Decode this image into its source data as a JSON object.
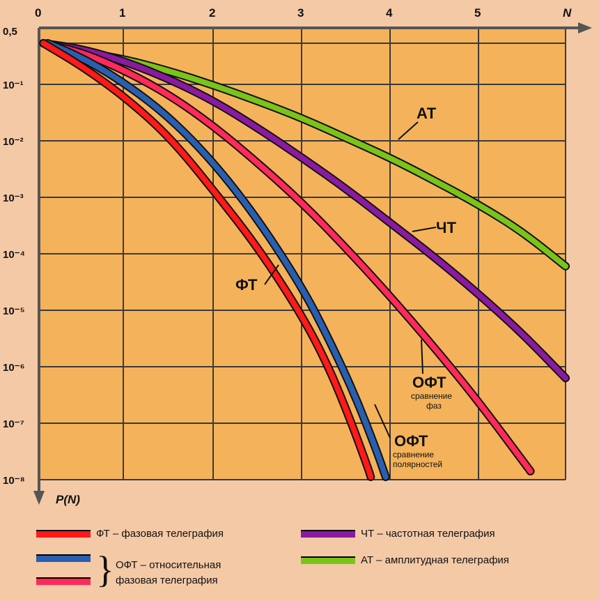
{
  "colors": {
    "background": "#f4c9a6",
    "plot_area": "#f4b35a",
    "grid": "#3a3a3a",
    "FT": "#ff1a1a",
    "OFT_phase": "#ff2a5a",
    "OFT_polarity": "#2a5fb0",
    "CT": "#8a1aa0",
    "AT": "#7ac41a"
  },
  "chart_data": {
    "type": "line",
    "xlabel": "N",
    "ylabel": "P(N)",
    "xlim": [
      0,
      6
    ],
    "x_ticks": [
      "0",
      "1",
      "2",
      "3",
      "4",
      "5",
      "N"
    ],
    "y_scale": "log",
    "ylim_exponent": [
      -8,
      0
    ],
    "y_ticks": [
      "0,5",
      "10⁻¹",
      "10⁻²",
      "10⁻³",
      "10⁻⁴",
      "10⁻⁵",
      "10⁻⁶",
      "10⁻⁷",
      "10⁻⁸"
    ],
    "grid": true,
    "series": [
      {
        "key": "AT",
        "name": "АТ",
        "x": [
          0.05,
          0.5,
          1.0,
          1.5,
          2.0,
          2.5,
          3.0,
          3.5,
          4.0,
          4.5,
          5.0,
          5.5,
          6.0
        ],
        "log10_y": [
          -0.3,
          -0.45,
          -0.58,
          -0.78,
          -1.02,
          -1.3,
          -1.6,
          -1.95,
          -2.3,
          -2.7,
          -3.12,
          -3.6,
          -4.22
        ]
      },
      {
        "key": "CT",
        "name": "ЧТ",
        "x": [
          0.05,
          0.5,
          1.0,
          1.5,
          2.0,
          2.5,
          3.0,
          3.5,
          4.0,
          4.5,
          5.0,
          5.5,
          6.0
        ],
        "log10_y": [
          -0.3,
          -0.4,
          -0.62,
          -0.92,
          -1.3,
          -1.78,
          -2.3,
          -2.85,
          -3.45,
          -4.05,
          -4.7,
          -5.4,
          -6.2
        ]
      },
      {
        "key": "OFT_phase",
        "name": "ОФТ сравнение фаз",
        "x": [
          0.05,
          0.5,
          1.0,
          1.5,
          2.0,
          2.5,
          3.0,
          3.5,
          4.0,
          4.5,
          5.0,
          5.6
        ],
        "log10_y": [
          -0.3,
          -0.46,
          -0.78,
          -1.2,
          -1.75,
          -2.4,
          -3.1,
          -3.9,
          -4.75,
          -5.65,
          -6.6,
          -7.85
        ]
      },
      {
        "key": "OFT_polarity",
        "name": "ОФТ сравнение полярностей",
        "x": [
          0.1,
          0.5,
          1.0,
          1.5,
          2.0,
          2.5,
          3.0,
          3.3,
          3.6,
          3.85,
          3.95
        ],
        "log10_y": [
          -0.3,
          -0.55,
          -1.0,
          -1.6,
          -2.4,
          -3.4,
          -4.6,
          -5.5,
          -6.5,
          -7.5,
          -7.95
        ]
      },
      {
        "key": "FT",
        "name": "ФТ",
        "x": [
          0.05,
          0.5,
          1.0,
          1.5,
          2.0,
          2.5,
          3.0,
          3.3,
          3.55,
          3.75,
          3.78
        ],
        "log10_y": [
          -0.3,
          -0.7,
          -1.25,
          -1.95,
          -2.9,
          -3.9,
          -5.1,
          -6.0,
          -6.95,
          -7.8,
          -7.95
        ]
      }
    ],
    "annotations": [
      {
        "key": "AT",
        "text": "АТ"
      },
      {
        "key": "CT",
        "text": "ЧТ"
      },
      {
        "key": "FT",
        "text": "ФТ"
      },
      {
        "key": "OFT_phase",
        "text": "ОФТ",
        "sub": [
          "сравнение",
          "фаз"
        ]
      },
      {
        "key": "OFT_polarity",
        "text": "ОФТ",
        "sub": [
          "сравнение",
          "полярностей"
        ]
      }
    ]
  },
  "legend": {
    "ft": "ФТ – фазовая телеграфия",
    "ct": "ЧТ – частотная телеграфия",
    "oft_line1": "ОФТ – относительная",
    "oft_line2": "фазовая телеграфия",
    "at": "АТ – амплитудная телеграфия",
    "brace": "}"
  }
}
